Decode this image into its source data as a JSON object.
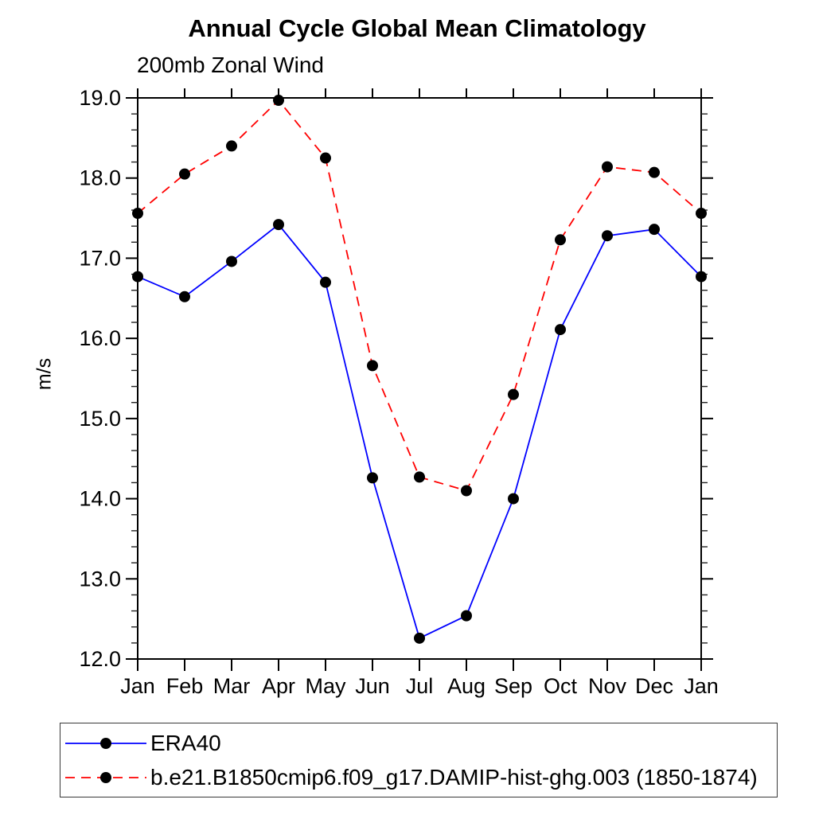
{
  "page": {
    "background": "#ffffff"
  },
  "chart_data": {
    "type": "line",
    "title": "Annual Cycle Global Mean Climatology",
    "subtitle": "200mb Zonal Wind",
    "ylabel": "m/s",
    "xlabel": "",
    "x_categories": [
      "Jan",
      "Feb",
      "Mar",
      "Apr",
      "May",
      "Jun",
      "Jul",
      "Aug",
      "Sep",
      "Oct",
      "Nov",
      "Dec",
      "Jan"
    ],
    "ylim": [
      12.0,
      19.0
    ],
    "y_major_step": 1.0,
    "y_minor_step": 0.2,
    "y_tick_labels": [
      "12.0",
      "13.0",
      "14.0",
      "15.0",
      "16.0",
      "17.0",
      "18.0",
      "19.0"
    ],
    "grid": "off",
    "legend_position": "bottom-left-boxed",
    "axis_color": "#000000",
    "marker": "filled-circle",
    "marker_color": "#000000",
    "series": [
      {
        "name": "ERA40",
        "color": "#0000ff",
        "line_style": "solid",
        "values": [
          16.77,
          16.52,
          16.96,
          17.42,
          16.7,
          14.26,
          12.26,
          12.54,
          14.0,
          16.11,
          17.28,
          17.36,
          16.77
        ]
      },
      {
        "name": "b.e21.B1850cmip6.f09_g17.DAMIP-hist-ghg.003 (1850-1874)",
        "color": "#ff0000",
        "line_style": "dashed",
        "values": [
          17.56,
          18.05,
          18.4,
          18.97,
          18.25,
          15.66,
          14.27,
          14.1,
          15.3,
          17.23,
          18.14,
          18.07,
          17.56
        ]
      }
    ]
  }
}
